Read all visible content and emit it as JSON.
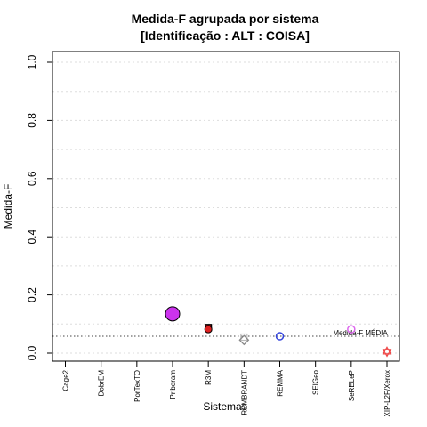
{
  "chart_data": {
    "type": "scatter",
    "title": "Medida-F agrupada por sistema",
    "subtitle": "[Identificação : ALT : COISA]",
    "xlabel": "Sistemas",
    "ylabel": "Medida-F",
    "ylim": [
      0,
      1
    ],
    "yticks": [
      "0.0",
      "0.2",
      "0.4",
      "0.6",
      "0.8",
      "1.0"
    ],
    "grid": true,
    "categories": [
      "Cage2",
      "DobrEM",
      "PorTexTO",
      "Priberam",
      "R3M",
      "REMBRANDT",
      "REMMA",
      "SEIGeo",
      "SeRELeP",
      "XIP-L2F/Xerox"
    ],
    "mean": {
      "label": "Medida-F MÉDIA",
      "value": 0.058
    },
    "points": [
      {
        "category": "Priberam",
        "y": 0.135,
        "shape": "circle-large",
        "color": "#cc33ee",
        "filled": true
      },
      {
        "category": "R3M",
        "y": 0.088,
        "shape": "square",
        "color": "#8b0000",
        "filled": true
      },
      {
        "category": "R3M",
        "y": 0.082,
        "shape": "circle",
        "color": "#dd2222",
        "filled": true
      },
      {
        "category": "REMBRANDT",
        "y": 0.055,
        "shape": "square",
        "color": "#bbbbbb",
        "filled": false
      },
      {
        "category": "REMBRANDT",
        "y": 0.045,
        "shape": "diamond",
        "color": "#888888",
        "filled": false
      },
      {
        "category": "REMMA",
        "y": 0.058,
        "shape": "circle",
        "color": "#3344dd",
        "filled": false
      },
      {
        "category": "SeRELeP",
        "y": 0.082,
        "shape": "circle",
        "color": "#dd66ee",
        "filled": false
      },
      {
        "category": "XIP-L2F/Xerox",
        "y": 0.005,
        "shape": "star",
        "color": "#ee4444",
        "filled": false
      }
    ]
  }
}
